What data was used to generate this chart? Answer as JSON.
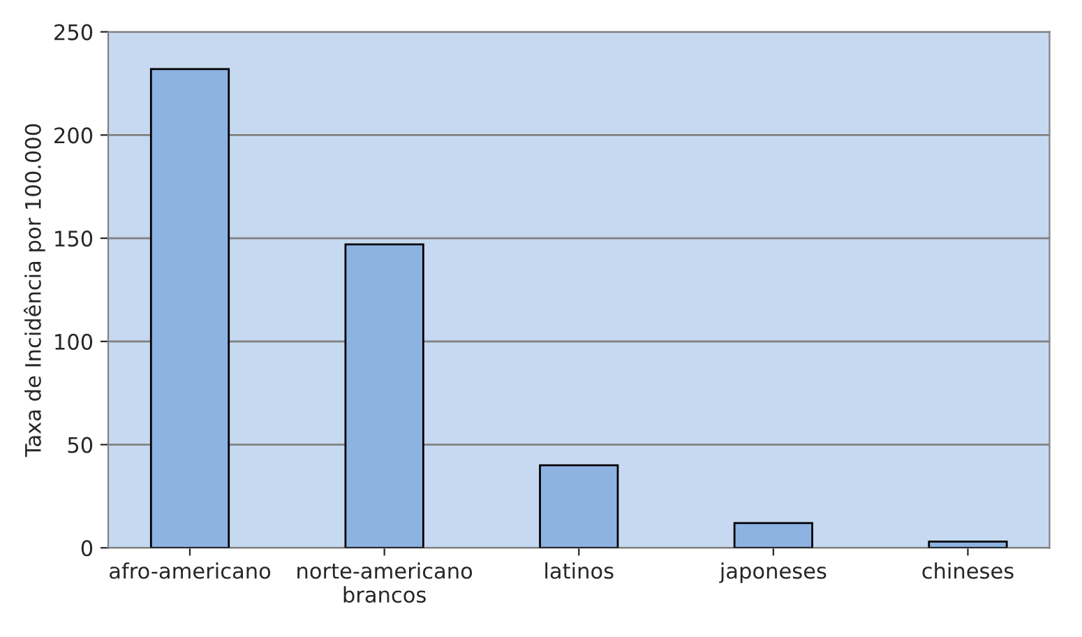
{
  "chart_data": {
    "type": "bar",
    "categories": [
      "afro-americano",
      "norte-americano\nbrancos",
      "latinos",
      "japoneses",
      "chineses"
    ],
    "values": [
      232,
      147,
      40,
      12,
      3
    ],
    "color": "#8db3e2",
    "ylabel": "Taxa de Incidência por 100.000",
    "ylim": [
      0,
      250
    ],
    "yticks": [
      0,
      50,
      100,
      150,
      200,
      250
    ],
    "grid": "y"
  }
}
